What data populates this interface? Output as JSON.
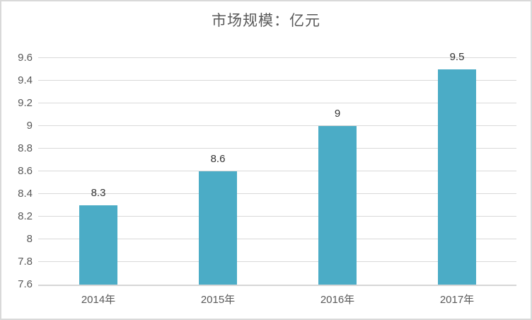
{
  "window": {
    "background": "#ffffff",
    "border_color": "#d9d9d9"
  },
  "chart_data": {
    "type": "bar",
    "title": "市场规模：亿元",
    "categories": [
      "2014年",
      "2015年",
      "2016年",
      "2017年"
    ],
    "values": [
      8.3,
      8.6,
      9,
      9.5
    ],
    "value_labels": [
      "8.3",
      "8.6",
      "9",
      "9.5"
    ],
    "xlabel": "",
    "ylabel": "",
    "ylim": [
      7.6,
      9.6
    ],
    "ytick_step": 0.2,
    "ytick_labels": [
      "7.6",
      "7.8",
      "8",
      "8.2",
      "8.4",
      "8.6",
      "8.8",
      "9",
      "9.2",
      "9.4",
      "9.6"
    ],
    "grid": true,
    "legend": "none",
    "colors": {
      "bar": "#4bacc6",
      "gridline": "#d9d9d9",
      "axis_line": "#d6d6d6",
      "title": "#595959",
      "tick_label": "#595959",
      "value_label": "#333333"
    }
  }
}
